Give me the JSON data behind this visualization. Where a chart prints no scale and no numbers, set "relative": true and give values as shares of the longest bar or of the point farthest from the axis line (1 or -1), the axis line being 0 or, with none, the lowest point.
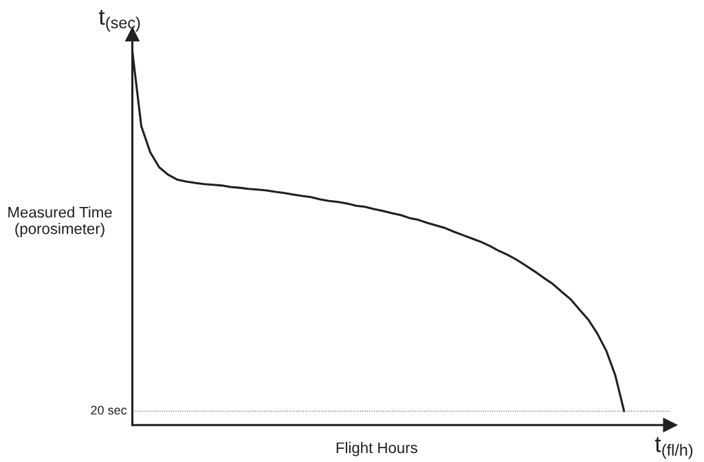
{
  "chart_data": {
    "type": "line",
    "relative": true,
    "xlabel": "Flight Hours",
    "ylabel": "Measured Time\n(porosimeter)",
    "annotations": [
      "t$_{(sec)}$",
      "t$_{(fl/h)}$"
    ],
    "categories": [
      null,
      null,
      null,
      null,
      null,
      null,
      null,
      null,
      null,
      null,
      null,
      null,
      null,
      null,
      null,
      null,
      null,
      null,
      null,
      null,
      null,
      null,
      null,
      null,
      null,
      null,
      null,
      null,
      null,
      null,
      null,
      null,
      null,
      null,
      null,
      null,
      null,
      null,
      null,
      null,
      null,
      null,
      null,
      null,
      null,
      null,
      null,
      null,
      null,
      null,
      null,
      null,
      null,
      null,
      null,
      null
    ],
    "series": [
      {
        "color": "#231f20",
        "values": [
          1.0,
          0.8,
          0.73,
          0.69,
          0.67,
          0.657,
          0.652,
          0.648,
          0.645,
          0.643,
          0.641,
          0.637,
          0.635,
          0.632,
          0.63,
          0.628,
          0.624,
          0.621,
          0.617,
          0.613,
          0.61,
          0.604,
          0.6,
          0.597,
          0.593,
          0.587,
          0.584,
          0.578,
          0.573,
          0.567,
          0.562,
          0.554,
          0.549,
          0.541,
          0.534,
          0.527,
          0.517,
          0.508,
          0.499,
          0.49,
          0.479,
          0.466,
          0.455,
          0.442,
          0.427,
          0.411,
          0.394,
          0.378,
          0.357,
          0.337,
          0.309,
          0.282,
          0.245,
          0.199,
          0.134,
          0.037
        ]
      }
    ],
    "ref_lines": [
      {
        "axis": "y",
        "value": 0.037,
        "label": "20 sec",
        "color": "#555555",
        "line_style": "dotted"
      }
    ],
    "marker": "none",
    "line_style": "solid"
  }
}
